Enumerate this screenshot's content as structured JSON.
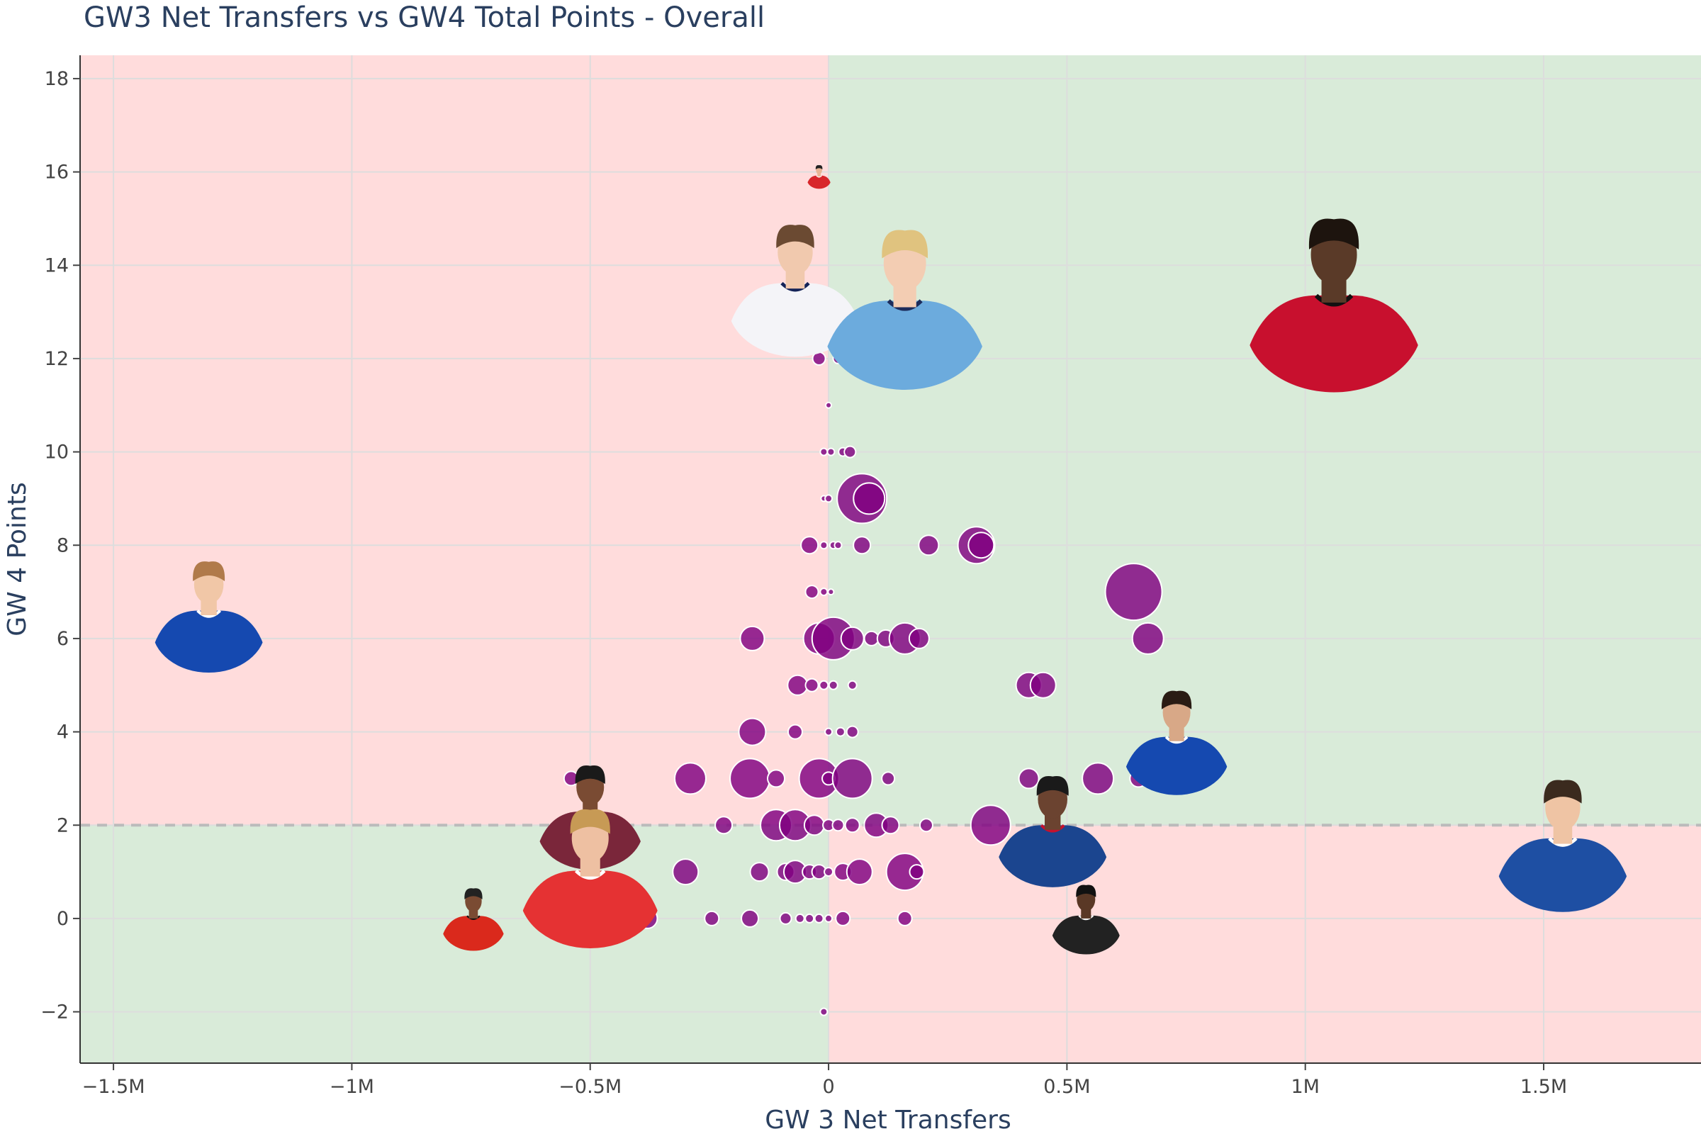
{
  "chart_data": {
    "type": "scatter",
    "title": "GW3 Net Transfers vs GW4 Total Points - Overall",
    "xlabel": "GW 3 Net Transfers",
    "ylabel": "GW 4 Points",
    "xlim": [
      -1570000,
      1830000
    ],
    "ylim": [
      -3.1,
      18.5
    ],
    "x_ticks": [
      {
        "value": -1500000,
        "label": "−1.5M"
      },
      {
        "value": -1000000,
        "label": "−1M"
      },
      {
        "value": -500000,
        "label": "−0.5M"
      },
      {
        "value": 0,
        "label": "0"
      },
      {
        "value": 500000,
        "label": "0.5M"
      },
      {
        "value": 1000000,
        "label": "1M"
      },
      {
        "value": 1500000,
        "label": "1.5M"
      }
    ],
    "y_ticks": [
      {
        "value": -2,
        "label": "−2"
      },
      {
        "value": 0,
        "label": "0"
      },
      {
        "value": 2,
        "label": "2"
      },
      {
        "value": 4,
        "label": "4"
      },
      {
        "value": 6,
        "label": "6"
      },
      {
        "value": 8,
        "label": "8"
      },
      {
        "value": 10,
        "label": "10"
      },
      {
        "value": 12,
        "label": "12"
      },
      {
        "value": 14,
        "label": "14"
      },
      {
        "value": 16,
        "label": "16"
      },
      {
        "value": 18,
        "label": "18"
      }
    ],
    "reference_y": 2,
    "reference_x": 0,
    "grid": true,
    "colors": {
      "marker": "#800080",
      "quadrant_red": "#ffdcdc",
      "quadrant_green": "#d9ebd9",
      "grid": "#dddddd",
      "reference_line": "#bbbbbb"
    },
    "points": [
      {
        "x": -20000,
        "y": 12,
        "r": 9
      },
      {
        "x": 20000,
        "y": 12,
        "r": 7
      },
      {
        "x": 0,
        "y": 11,
        "r": 4
      },
      {
        "x": -10000,
        "y": 10,
        "r": 5
      },
      {
        "x": 5000,
        "y": 10,
        "r": 5
      },
      {
        "x": 30000,
        "y": 10,
        "r": 6
      },
      {
        "x": 45000,
        "y": 10,
        "r": 8
      },
      {
        "x": -10000,
        "y": 9,
        "r": 4
      },
      {
        "x": 0,
        "y": 9,
        "r": 5
      },
      {
        "x": 70000,
        "y": 9,
        "r": 35
      },
      {
        "x": 85000,
        "y": 9,
        "r": 22
      },
      {
        "x": -40000,
        "y": 8,
        "r": 12
      },
      {
        "x": -10000,
        "y": 8,
        "r": 5
      },
      {
        "x": 10000,
        "y": 8,
        "r": 5
      },
      {
        "x": 20000,
        "y": 8,
        "r": 5
      },
      {
        "x": 70000,
        "y": 8,
        "r": 12
      },
      {
        "x": 210000,
        "y": 8,
        "r": 14
      },
      {
        "x": 310000,
        "y": 8,
        "r": 26
      },
      {
        "x": 320000,
        "y": 8,
        "r": 18
      },
      {
        "x": -35000,
        "y": 7,
        "r": 9
      },
      {
        "x": -10000,
        "y": 7,
        "r": 5
      },
      {
        "x": 5000,
        "y": 7,
        "r": 4
      },
      {
        "x": 640000,
        "y": 7,
        "r": 40
      },
      {
        "x": -160000,
        "y": 6,
        "r": 17
      },
      {
        "x": -20000,
        "y": 6,
        "r": 22
      },
      {
        "x": 10000,
        "y": 6,
        "r": 30
      },
      {
        "x": 50000,
        "y": 6,
        "r": 16
      },
      {
        "x": 90000,
        "y": 6,
        "r": 10
      },
      {
        "x": 120000,
        "y": 6,
        "r": 12
      },
      {
        "x": 160000,
        "y": 6,
        "r": 22
      },
      {
        "x": 190000,
        "y": 6,
        "r": 14
      },
      {
        "x": 670000,
        "y": 6,
        "r": 22
      },
      {
        "x": -65000,
        "y": 5,
        "r": 14
      },
      {
        "x": -35000,
        "y": 5,
        "r": 9
      },
      {
        "x": -10000,
        "y": 5,
        "r": 6
      },
      {
        "x": 10000,
        "y": 5,
        "r": 6
      },
      {
        "x": 50000,
        "y": 5,
        "r": 6
      },
      {
        "x": 420000,
        "y": 5,
        "r": 18
      },
      {
        "x": 450000,
        "y": 5,
        "r": 18
      },
      {
        "x": -160000,
        "y": 4,
        "r": 19
      },
      {
        "x": -70000,
        "y": 4,
        "r": 10
      },
      {
        "x": 0,
        "y": 4,
        "r": 5
      },
      {
        "x": 25000,
        "y": 4,
        "r": 6
      },
      {
        "x": 50000,
        "y": 4,
        "r": 8
      },
      {
        "x": -540000,
        "y": 3,
        "r": 10
      },
      {
        "x": -290000,
        "y": 3,
        "r": 22
      },
      {
        "x": -165000,
        "y": 3,
        "r": 28
      },
      {
        "x": -110000,
        "y": 3,
        "r": 12
      },
      {
        "x": -20000,
        "y": 3,
        "r": 28
      },
      {
        "x": 0,
        "y": 3,
        "r": 9
      },
      {
        "x": 50000,
        "y": 3,
        "r": 28
      },
      {
        "x": 125000,
        "y": 3,
        "r": 9
      },
      {
        "x": 420000,
        "y": 3,
        "r": 14
      },
      {
        "x": 565000,
        "y": 3,
        "r": 22
      },
      {
        "x": 650000,
        "y": 3,
        "r": 12
      },
      {
        "x": -220000,
        "y": 2,
        "r": 12
      },
      {
        "x": -110000,
        "y": 2,
        "r": 22
      },
      {
        "x": -70000,
        "y": 2,
        "r": 22
      },
      {
        "x": -30000,
        "y": 2,
        "r": 14
      },
      {
        "x": 0,
        "y": 2,
        "r": 8
      },
      {
        "x": 20000,
        "y": 2,
        "r": 8
      },
      {
        "x": 50000,
        "y": 2,
        "r": 10
      },
      {
        "x": 100000,
        "y": 2,
        "r": 17
      },
      {
        "x": 130000,
        "y": 2,
        "r": 12
      },
      {
        "x": 205000,
        "y": 2,
        "r": 9
      },
      {
        "x": 340000,
        "y": 2,
        "r": 28
      },
      {
        "x": -300000,
        "y": 1,
        "r": 18
      },
      {
        "x": -145000,
        "y": 1,
        "r": 13
      },
      {
        "x": -90000,
        "y": 1,
        "r": 12
      },
      {
        "x": -70000,
        "y": 1,
        "r": 16
      },
      {
        "x": -40000,
        "y": 1,
        "r": 10
      },
      {
        "x": -20000,
        "y": 1,
        "r": 10
      },
      {
        "x": 0,
        "y": 1,
        "r": 6
      },
      {
        "x": 30000,
        "y": 1,
        "r": 12
      },
      {
        "x": 65000,
        "y": 1,
        "r": 18
      },
      {
        "x": 160000,
        "y": 1,
        "r": 26
      },
      {
        "x": 185000,
        "y": 1,
        "r": 10
      },
      {
        "x": -380000,
        "y": 0,
        "r": 14
      },
      {
        "x": -245000,
        "y": 0,
        "r": 10
      },
      {
        "x": -165000,
        "y": 0,
        "r": 12
      },
      {
        "x": -90000,
        "y": 0,
        "r": 8
      },
      {
        "x": -60000,
        "y": 0,
        "r": 6
      },
      {
        "x": -40000,
        "y": 0,
        "r": 6
      },
      {
        "x": -20000,
        "y": 0,
        "r": 6
      },
      {
        "x": 0,
        "y": 0,
        "r": 5
      },
      {
        "x": 30000,
        "y": 0,
        "r": 10
      },
      {
        "x": 160000,
        "y": 0,
        "r": 10
      },
      {
        "x": -10000,
        "y": -2,
        "r": 5
      }
    ],
    "player_images": [
      {
        "x": -1300000,
        "y": 6.5,
        "size": 160,
        "shirt": "#1549b0",
        "skin": "#f1c7a7",
        "hair": "#b07a4a",
        "trim": "#ffffff",
        "icon": "player-photo-icon"
      },
      {
        "x": -20000,
        "y": 15.9,
        "size": 34,
        "shirt": "#d8262b",
        "skin": "#e8b596",
        "hair": "#222222",
        "trim": "#ffffff",
        "icon": "player-photo-icon"
      },
      {
        "x": -70000,
        "y": 13.5,
        "size": 190,
        "shirt": "#f4f4f8",
        "skin": "#f1c9ae",
        "hair": "#6b4a32",
        "trim": "#132257",
        "icon": "player-photo-icon"
      },
      {
        "x": 160000,
        "y": 13.1,
        "size": 230,
        "shirt": "#6cabdd",
        "skin": "#f3cdb3",
        "hair": "#e0c37f",
        "trim": "#1c2c5b",
        "icon": "player-photo-icon"
      },
      {
        "x": 1060000,
        "y": 13.2,
        "size": 250,
        "shirt": "#c8102e",
        "skin": "#5a3a28",
        "hair": "#1d140e",
        "trim": "#111111",
        "icon": "player-photo-icon"
      },
      {
        "x": 730000,
        "y": 3.8,
        "size": 150,
        "shirt": "#1549b0",
        "skin": "#d8a887",
        "hair": "#2a1c14",
        "trim": "#ffffff",
        "icon": "player-photo-icon"
      },
      {
        "x": 1540000,
        "y": 1.6,
        "size": 190,
        "shirt": "#1e4fa3",
        "skin": "#efc4a4",
        "hair": "#3b2a1e",
        "trim": "#ffffff",
        "icon": "player-photo-icon"
      },
      {
        "x": 470000,
        "y": 1.9,
        "size": 160,
        "shirt": "#1b458f",
        "skin": "#6b4330",
        "hair": "#1a1a1a",
        "trim": "#c4122e",
        "icon": "player-photo-icon"
      },
      {
        "x": 540000,
        "y": 0.0,
        "size": 100,
        "shirt": "#222222",
        "skin": "#5a3826",
        "hair": "#111111",
        "trim": "#f4f4f4",
        "icon": "player-photo-icon"
      },
      {
        "x": -500000,
        "y": 2.2,
        "size": 150,
        "shirt": "#7a263a",
        "skin": "#7a4b33",
        "hair": "#1a1a1a",
        "trim": "#95bfe5",
        "icon": "player-photo-icon"
      },
      {
        "x": -500000,
        "y": 0.9,
        "size": 200,
        "shirt": "#e53233",
        "skin": "#eec0a2",
        "hair": "#c79a55",
        "trim": "#ffffff",
        "icon": "player-photo-icon"
      },
      {
        "x": -745000,
        "y": 0.0,
        "size": 90,
        "shirt": "#da291c",
        "skin": "#7a4b33",
        "hair": "#222222",
        "trim": "#111111",
        "icon": "player-photo-icon"
      }
    ]
  }
}
